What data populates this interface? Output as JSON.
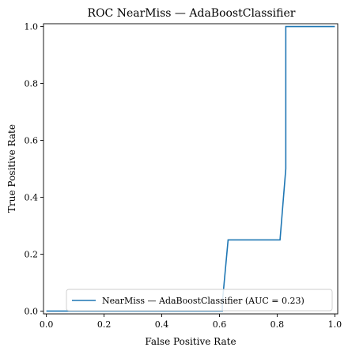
{
  "chart_data": {
    "type": "line",
    "title": "ROC NearMiss — AdaBoostClassifier",
    "xlabel": "False Positive Rate",
    "ylabel": "True Positive Rate",
    "xlim": [
      -0.01,
      1.01
    ],
    "ylim": [
      -0.01,
      1.01
    ],
    "grid": false,
    "legend_position": "lower-right",
    "x_ticks": [
      "0.0",
      "0.2",
      "0.4",
      "0.6",
      "0.8",
      "1.0"
    ],
    "y_ticks": [
      "0.0",
      "0.2",
      "0.4",
      "0.6",
      "0.8",
      "1.0"
    ],
    "series": [
      {
        "name": "NearMiss — AdaBoostClassifier (AUC = 0.23)",
        "color": "#1f77b4",
        "x": [
          0.0,
          0.61,
          0.61,
          0.63,
          0.81,
          0.83,
          0.83,
          1.0
        ],
        "y": [
          0.0,
          0.0,
          0.03,
          0.25,
          0.25,
          0.5,
          1.0,
          1.0
        ]
      }
    ]
  }
}
